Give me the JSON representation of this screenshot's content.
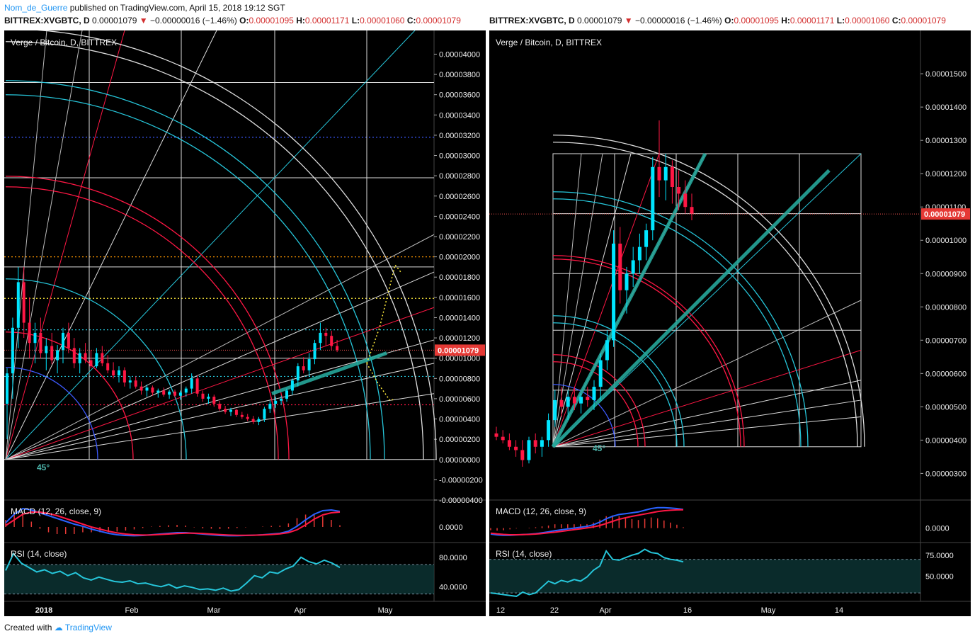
{
  "publish": {
    "author": "Nom_de_Guerre",
    "text": "published on TradingView.com, April 15, 2018 19:12 SGT"
  },
  "header": {
    "symbol": "BITTREX:XVGBTC, D",
    "last": "0.00001079",
    "arrow": "▼",
    "change": "−0.00000016 (−1.46%)",
    "o_label": "O:",
    "o": "0.00001095",
    "h_label": "H:",
    "h": "0.00001171",
    "l_label": "L:",
    "l": "0.00001060",
    "c_label": "C:",
    "c": "0.00001079"
  },
  "footer": {
    "created_with": "Created with",
    "brand": "TradingView"
  },
  "colors": {
    "up": "#00e5ff",
    "down": "#ff1744",
    "macd": "#2962ff",
    "signal": "#ff1744",
    "rsi": "#26c6da",
    "price_tag": "#e53935"
  },
  "chart_data": [
    {
      "type": "candlestick",
      "title": "Verge / Bitcoin, D, BITTREX",
      "price_axis": [
        "0.00004000",
        "0.00003800",
        "0.00003600",
        "0.00003400",
        "0.00003200",
        "0.00003000",
        "0.00002800",
        "0.00002600",
        "0.00002400",
        "0.00002200",
        "0.00002000",
        "0.00001800",
        "0.00001600",
        "0.00001400",
        "0.00001200",
        "0.00001000",
        "0.00000800",
        "0.00000600",
        "0.00000400",
        "0.00000200",
        "0.00000000",
        "-0.00000200",
        "-0.00000400"
      ],
      "ylim": [
        -4e-06,
        4.08e-05
      ],
      "last_price_label": "0.00001079",
      "last_price": 1.079e-05,
      "time_axis": [
        "2018",
        "Feb",
        "Mar",
        "Apr",
        "May"
      ],
      "gann_label": "45°",
      "hlines": [
        {
          "value": 3.18e-05,
          "color": "#3d5afe",
          "style": "dotted"
        },
        {
          "value": 2e-05,
          "color": "#ff9800",
          "style": "dotted"
        },
        {
          "value": 1.59e-05,
          "color": "#ffeb3b",
          "style": "dotted"
        },
        {
          "value": 1.28e-05,
          "color": "#26c6da",
          "style": "dotted"
        },
        {
          "value": 8.2e-06,
          "color": "#26c6da",
          "style": "dotted"
        },
        {
          "value": 5.4e-06,
          "color": "#ff1744",
          "style": "dotted"
        }
      ],
      "candles": [
        {
          "t": 0,
          "o": 5.5e-06,
          "h": 9e-06,
          "l": 2e-06,
          "c": 8.5e-06
        },
        {
          "t": 1,
          "o": 8.5e-06,
          "h": 1.4e-05,
          "l": 6e-06,
          "c": 1.3e-05
        },
        {
          "t": 2,
          "o": 1.3e-05,
          "h": 1.9e-05,
          "l": 1.1e-05,
          "c": 1.75e-05
        },
        {
          "t": 3,
          "o": 1.75e-05,
          "h": 1.9e-05,
          "l": 1.2e-05,
          "c": 1.35e-05
        },
        {
          "t": 4,
          "o": 1.35e-05,
          "h": 1.6e-05,
          "l": 1e-05,
          "c": 1.15e-05
        },
        {
          "t": 5,
          "o": 1.15e-05,
          "h": 1.35e-05,
          "l": 9.5e-06,
          "c": 1.25e-05
        },
        {
          "t": 6,
          "o": 1.25e-05,
          "h": 1.4e-05,
          "l": 1e-05,
          "c": 1.05e-05
        },
        {
          "t": 7,
          "o": 1.05e-05,
          "h": 1.2e-05,
          "l": 8.8e-06,
          "c": 1.12e-05
        },
        {
          "t": 8,
          "o": 1.12e-05,
          "h": 1.25e-05,
          "l": 9.4e-06,
          "c": 9.8e-06
        },
        {
          "t": 9,
          "o": 9.8e-06,
          "h": 1.13e-05,
          "l": 8.5e-06,
          "c": 1.08e-05
        },
        {
          "t": 10,
          "o": 1.08e-05,
          "h": 1.3e-05,
          "l": 9.5e-06,
          "c": 1.25e-05
        },
        {
          "t": 11,
          "o": 1.25e-05,
          "h": 1.35e-05,
          "l": 1.05e-05,
          "c": 1.1e-05
        },
        {
          "t": 12,
          "o": 1.1e-05,
          "h": 1.2e-05,
          "l": 9e-06,
          "c": 9.5e-06
        },
        {
          "t": 13,
          "o": 9.5e-06,
          "h": 1.1e-05,
          "l": 8.5e-06,
          "c": 1.05e-05
        },
        {
          "t": 14,
          "o": 1.05e-05,
          "h": 1.15e-05,
          "l": 9.5e-06,
          "c": 9.8e-06
        },
        {
          "t": 15,
          "o": 9.8e-06,
          "h": 1.08e-05,
          "l": 9e-06,
          "c": 9.2e-06
        },
        {
          "t": 16,
          "o": 9.2e-06,
          "h": 1.1e-05,
          "l": 9e-06,
          "c": 1.05e-05
        },
        {
          "t": 17,
          "o": 1.05e-05,
          "h": 1.12e-05,
          "l": 9.2e-06,
          "c": 9.5e-06
        },
        {
          "t": 18,
          "o": 9.5e-06,
          "h": 1.03e-05,
          "l": 8.5e-06,
          "c": 8.8e-06
        },
        {
          "t": 19,
          "o": 8.8e-06,
          "h": 9.6e-06,
          "l": 8e-06,
          "c": 8.3e-06
        },
        {
          "t": 20,
          "o": 8.3e-06,
          "h": 9.2e-06,
          "l": 7.6e-06,
          "c": 8.8e-06
        },
        {
          "t": 21,
          "o": 8.8e-06,
          "h": 9.1e-06,
          "l": 7.2e-06,
          "c": 7.6e-06
        },
        {
          "t": 22,
          "o": 7.6e-06,
          "h": 8.2e-06,
          "l": 7e-06,
          "c": 7.8e-06
        },
        {
          "t": 23,
          "o": 7.8e-06,
          "h": 8.2e-06,
          "l": 7e-06,
          "c": 7.2e-06
        },
        {
          "t": 24,
          "o": 7.2e-06,
          "h": 7.7e-06,
          "l": 6.4e-06,
          "c": 6.8e-06
        },
        {
          "t": 25,
          "o": 6.8e-06,
          "h": 7.4e-06,
          "l": 6.2e-06,
          "c": 7.1e-06
        },
        {
          "t": 26,
          "o": 7.1e-06,
          "h": 7.3e-06,
          "l": 6.3e-06,
          "c": 6.6e-06
        },
        {
          "t": 27,
          "o": 6.6e-06,
          "h": 7e-06,
          "l": 6.1e-06,
          "c": 6.8e-06
        },
        {
          "t": 28,
          "o": 6.8e-06,
          "h": 7.1e-06,
          "l": 6.2e-06,
          "c": 6.4e-06
        },
        {
          "t": 29,
          "o": 6.4e-06,
          "h": 6.9e-06,
          "l": 6e-06,
          "c": 6.7e-06
        },
        {
          "t": 30,
          "o": 6.7e-06,
          "h": 6.9e-06,
          "l": 6.1e-06,
          "c": 6.3e-06
        },
        {
          "t": 31,
          "o": 6.3e-06,
          "h": 6.8e-06,
          "l": 5.9e-06,
          "c": 6.6e-06
        },
        {
          "t": 32,
          "o": 6.6e-06,
          "h": 7.2e-06,
          "l": 6.2e-06,
          "c": 7e-06
        },
        {
          "t": 33,
          "o": 7e-06,
          "h": 8.5e-06,
          "l": 6.5e-06,
          "c": 8e-06
        },
        {
          "t": 34,
          "o": 8e-06,
          "h": 8.3e-06,
          "l": 6.2e-06,
          "c": 6.5e-06
        },
        {
          "t": 35,
          "o": 6.5e-06,
          "h": 6.8e-06,
          "l": 5.7e-06,
          "c": 6e-06
        },
        {
          "t": 36,
          "o": 6e-06,
          "h": 6.5e-06,
          "l": 5.5e-06,
          "c": 6.2e-06
        },
        {
          "t": 37,
          "o": 6.2e-06,
          "h": 6.4e-06,
          "l": 5.2e-06,
          "c": 5.5e-06
        },
        {
          "t": 38,
          "o": 5.5e-06,
          "h": 5.8e-06,
          "l": 4.8e-06,
          "c": 5e-06
        },
        {
          "t": 39,
          "o": 5e-06,
          "h": 5.3e-06,
          "l": 4.5e-06,
          "c": 4.7e-06
        },
        {
          "t": 40,
          "o": 4.7e-06,
          "h": 5.1e-06,
          "l": 4.3e-06,
          "c": 4.9e-06
        },
        {
          "t": 41,
          "o": 4.9e-06,
          "h": 5e-06,
          "l": 4.2e-06,
          "c": 4.4e-06
        },
        {
          "t": 42,
          "o": 4.4e-06,
          "h": 4.7e-06,
          "l": 4e-06,
          "c": 4.2e-06
        },
        {
          "t": 43,
          "o": 4.2e-06,
          "h": 4.5e-06,
          "l": 3.8e-06,
          "c": 4e-06
        },
        {
          "t": 44,
          "o": 4e-06,
          "h": 4.3e-06,
          "l": 3.5e-06,
          "c": 3.7e-06
        },
        {
          "t": 45,
          "o": 3.7e-06,
          "h": 4.2e-06,
          "l": 3.4e-06,
          "c": 4e-06
        },
        {
          "t": 46,
          "o": 4e-06,
          "h": 5.2e-06,
          "l": 3.7e-06,
          "c": 5e-06
        },
        {
          "t": 47,
          "o": 5e-06,
          "h": 5.8e-06,
          "l": 4.6e-06,
          "c": 5.5e-06
        },
        {
          "t": 48,
          "o": 5.5e-06,
          "h": 6.2e-06,
          "l": 5.1e-06,
          "c": 5.8e-06
        },
        {
          "t": 49,
          "o": 5.8e-06,
          "h": 6.3e-06,
          "l": 5.4e-06,
          "c": 6e-06
        },
        {
          "t": 50,
          "o": 6e-06,
          "h": 7e-06,
          "l": 5.7e-06,
          "c": 6.8e-06
        },
        {
          "t": 51,
          "o": 6.8e-06,
          "h": 8e-06,
          "l": 6.4e-06,
          "c": 7.8e-06
        },
        {
          "t": 52,
          "o": 7.8e-06,
          "h": 9.5e-06,
          "l": 7.2e-06,
          "c": 9.2e-06
        },
        {
          "t": 53,
          "o": 9.2e-06,
          "h": 1.01e-05,
          "l": 8.5e-06,
          "c": 8.8e-06
        },
        {
          "t": 54,
          "o": 8.8e-06,
          "h": 1.05e-05,
          "l": 8.2e-06,
          "c": 9.9e-06
        },
        {
          "t": 55,
          "o": 9.9e-06,
          "h": 1.18e-05,
          "l": 9.4e-06,
          "c": 1.15e-05
        },
        {
          "t": 56,
          "o": 1.15e-05,
          "h": 1.35e-05,
          "l": 1.08e-05,
          "c": 1.25e-05
        },
        {
          "t": 57,
          "o": 1.25e-05,
          "h": 1.3e-05,
          "l": 1.12e-05,
          "c": 1.22e-05
        },
        {
          "t": 58,
          "o": 1.22e-05,
          "h": 1.27e-05,
          "l": 1.08e-05,
          "c": 1.12e-05
        },
        {
          "t": 59,
          "o": 1.12e-05,
          "h": 1.18e-05,
          "l": 1.06e-05,
          "c": 1.08e-05
        }
      ],
      "macd": {
        "label": "MACD (12, 26, close, 9)",
        "axis": [
          "0.0000"
        ],
        "macd_line": [
          0.3,
          0.9,
          1.3,
          1.2,
          1.0,
          0.8,
          0.6,
          0.4,
          0.2,
          0.05,
          -0.15,
          -0.3,
          -0.45,
          -0.55,
          -0.6,
          -0.62,
          -0.6,
          -0.55,
          -0.5,
          -0.45,
          -0.4,
          -0.4,
          -0.45,
          -0.5,
          -0.55,
          -0.6,
          -0.62,
          -0.62,
          -0.6,
          -0.58,
          -0.55,
          -0.5,
          -0.45,
          -0.3,
          0.05,
          0.5,
          0.9,
          1.15,
          1.2,
          1.1
        ],
        "signal_line": [
          0.1,
          0.5,
          0.9,
          1.05,
          1.05,
          0.95,
          0.8,
          0.6,
          0.4,
          0.2,
          0.0,
          -0.15,
          -0.3,
          -0.42,
          -0.5,
          -0.55,
          -0.57,
          -0.56,
          -0.53,
          -0.5,
          -0.46,
          -0.44,
          -0.44,
          -0.46,
          -0.5,
          -0.54,
          -0.57,
          -0.59,
          -0.59,
          -0.58,
          -0.56,
          -0.53,
          -0.49,
          -0.4,
          -0.2,
          0.15,
          0.55,
          0.85,
          1.0,
          1.05
        ],
        "ylim": [
          -0.8,
          1.6
        ]
      },
      "rsi": {
        "label": "RSI (14, close)",
        "axis": [
          "80.0000",
          "40.0000"
        ],
        "ylim": [
          20,
          100
        ],
        "upper": 70,
        "lower": 30,
        "values": [
          62,
          85,
          72,
          66,
          60,
          63,
          58,
          61,
          55,
          59,
          52,
          49,
          53,
          50,
          47,
          46,
          48,
          44,
          45,
          42,
          40,
          43,
          38,
          41,
          39,
          36,
          37,
          35,
          38,
          34,
          36,
          45,
          55,
          52,
          60,
          58,
          64,
          68,
          80,
          74,
          71,
          76,
          72,
          66
        ]
      }
    },
    {
      "type": "candlestick",
      "title": "Verge / Bitcoin, D, BITTREX",
      "price_axis": [
        "0.00001500",
        "0.00001400",
        "0.00001300",
        "0.00001200",
        "0.00001100",
        "0.00001000",
        "0.00000900",
        "0.00000800",
        "0.00000700",
        "0.00000600",
        "0.00000500",
        "0.00000400",
        "0.00000300"
      ],
      "ylim": [
        2.2e-06,
        1.63e-05
      ],
      "last_price_label": "0.00001079",
      "last_price": 1.079e-05,
      "time_axis": [
        "12",
        "22",
        "Apr",
        "16",
        "May",
        "14"
      ],
      "gann_label": "45°",
      "candles": [
        {
          "t": 0,
          "o": 4.2e-06,
          "h": 4.4e-06,
          "l": 4e-06,
          "c": 4.1e-06
        },
        {
          "t": 1,
          "o": 4.1e-06,
          "h": 4.3e-06,
          "l": 3.9e-06,
          "c": 4e-06
        },
        {
          "t": 2,
          "o": 4e-06,
          "h": 4.2e-06,
          "l": 3.7e-06,
          "c": 3.8e-06
        },
        {
          "t": 3,
          "o": 3.8e-06,
          "h": 4e-06,
          "l": 3.5e-06,
          "c": 3.7e-06
        },
        {
          "t": 4,
          "o": 3.7e-06,
          "h": 4e-06,
          "l": 3.2e-06,
          "c": 3.4e-06
        },
        {
          "t": 5,
          "o": 3.4e-06,
          "h": 4.1e-06,
          "l": 3.3e-06,
          "c": 4e-06
        },
        {
          "t": 6,
          "o": 4e-06,
          "h": 4.2e-06,
          "l": 3.6e-06,
          "c": 3.8e-06
        },
        {
          "t": 7,
          "o": 3.8e-06,
          "h": 4.1e-06,
          "l": 3.5e-06,
          "c": 4e-06
        },
        {
          "t": 8,
          "o": 4e-06,
          "h": 4.8e-06,
          "l": 3.8e-06,
          "c": 4.6e-06
        },
        {
          "t": 9,
          "o": 4.6e-06,
          "h": 5.5e-06,
          "l": 4.4e-06,
          "c": 5.2e-06
        },
        {
          "t": 10,
          "o": 5.2e-06,
          "h": 5.6e-06,
          "l": 4.7e-06,
          "c": 5e-06
        },
        {
          "t": 11,
          "o": 5e-06,
          "h": 5.5e-06,
          "l": 4.6e-06,
          "c": 5.3e-06
        },
        {
          "t": 12,
          "o": 5.3e-06,
          "h": 5.6e-06,
          "l": 4.9e-06,
          "c": 5.1e-06
        },
        {
          "t": 13,
          "o": 5.1e-06,
          "h": 5.4e-06,
          "l": 4.8e-06,
          "c": 5.3e-06
        },
        {
          "t": 14,
          "o": 5.3e-06,
          "h": 5.6e-06,
          "l": 5e-06,
          "c": 5.2e-06
        },
        {
          "t": 15,
          "o": 5.2e-06,
          "h": 5.8e-06,
          "l": 4.9e-06,
          "c": 5.6e-06
        },
        {
          "t": 16,
          "o": 5.6e-06,
          "h": 6.6e-06,
          "l": 5.2e-06,
          "c": 6.4e-06
        },
        {
          "t": 17,
          "o": 6.4e-06,
          "h": 7.3e-06,
          "l": 6.1e-06,
          "c": 7e-06
        },
        {
          "t": 18,
          "o": 7e-06,
          "h": 1.03e-05,
          "l": 6.8e-06,
          "c": 9.9e-06
        },
        {
          "t": 19,
          "o": 9.9e-06,
          "h": 1.04e-05,
          "l": 8.1e-06,
          "c": 8.5e-06
        },
        {
          "t": 20,
          "o": 8.5e-06,
          "h": 9.2e-06,
          "l": 7.8e-06,
          "c": 9e-06
        },
        {
          "t": 21,
          "o": 9e-06,
          "h": 9.8e-06,
          "l": 8.6e-06,
          "c": 9.4e-06
        },
        {
          "t": 22,
          "o": 9.4e-06,
          "h": 1.02e-05,
          "l": 9e-06,
          "c": 9.8e-06
        },
        {
          "t": 23,
          "o": 9.8e-06,
          "h": 1.05e-05,
          "l": 9.4e-06,
          "c": 1.03e-05
        },
        {
          "t": 24,
          "o": 1.03e-05,
          "h": 1.25e-05,
          "l": 1e-05,
          "c": 1.22e-05
        },
        {
          "t": 25,
          "o": 1.22e-05,
          "h": 1.36e-05,
          "l": 1.13e-05,
          "c": 1.18e-05
        },
        {
          "t": 26,
          "o": 1.18e-05,
          "h": 1.26e-05,
          "l": 1.12e-05,
          "c": 1.22e-05
        },
        {
          "t": 27,
          "o": 1.22e-05,
          "h": 1.24e-05,
          "l": 1.11e-05,
          "c": 1.16e-05
        },
        {
          "t": 28,
          "o": 1.16e-05,
          "h": 1.21e-05,
          "l": 1.09e-05,
          "c": 1.14e-05
        },
        {
          "t": 29,
          "o": 1.14e-05,
          "h": 1.18e-05,
          "l": 1.08e-05,
          "c": 1.1e-05
        },
        {
          "t": 30,
          "o": 1.1e-05,
          "h": 1.14e-05,
          "l": 1.06e-05,
          "c": 1.08e-05
        }
      ],
      "macd": {
        "label": "MACD (12, 26, close, 9)",
        "axis": [
          "0.0000"
        ],
        "macd_line": [
          -0.35,
          -0.4,
          -0.42,
          -0.42,
          -0.4,
          -0.38,
          -0.36,
          -0.33,
          -0.28,
          -0.22,
          -0.15,
          -0.1,
          -0.05,
          0.0,
          0.05,
          0.1,
          0.2,
          0.35,
          0.55,
          0.7,
          0.8,
          0.85,
          0.9,
          0.95,
          1.05,
          1.15,
          1.2,
          1.2,
          1.18,
          1.15,
          1.1
        ],
        "signal_line": [
          -0.3,
          -0.34,
          -0.37,
          -0.39,
          -0.39,
          -0.38,
          -0.37,
          -0.35,
          -0.32,
          -0.28,
          -0.24,
          -0.19,
          -0.14,
          -0.09,
          -0.04,
          0.01,
          0.07,
          0.15,
          0.27,
          0.4,
          0.52,
          0.61,
          0.69,
          0.76,
          0.83,
          0.9,
          0.97,
          1.02,
          1.05,
          1.07,
          1.08
        ],
        "ylim": [
          -0.6,
          1.4
        ]
      },
      "rsi": {
        "label": "RSI (14, close)",
        "axis": [
          "75.0000",
          "50.0000"
        ],
        "ylim": [
          20,
          90
        ],
        "upper": 70,
        "lower": 30,
        "values": [
          30,
          29,
          28,
          27,
          26,
          31,
          28,
          30,
          37,
          44,
          41,
          45,
          43,
          46,
          44,
          49,
          57,
          62,
          80,
          70,
          69,
          72,
          75,
          77,
          82,
          78,
          77,
          72,
          70,
          69,
          67
        ]
      }
    }
  ]
}
